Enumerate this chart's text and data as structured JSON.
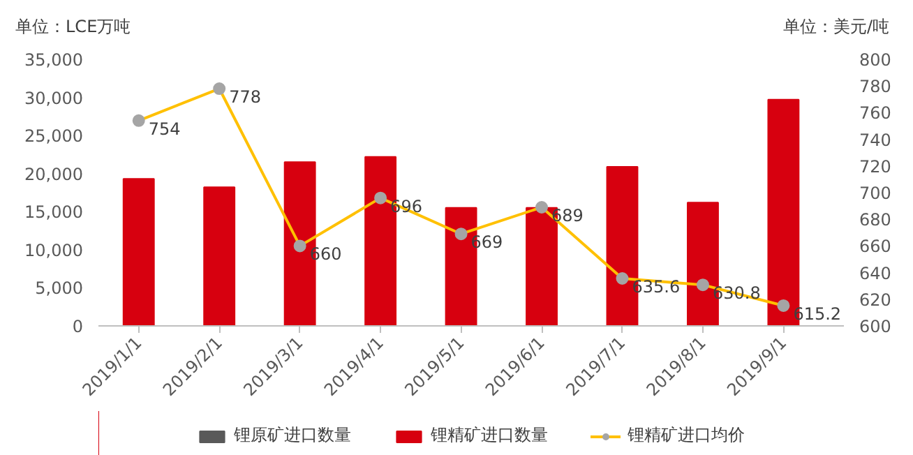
{
  "chart_data": {
    "type": "bar",
    "ylabel": "单位：LCE万吨",
    "y2label": "单位：美元/吨",
    "categories": [
      "2019/1/1",
      "2019/2/1",
      "2019/3/1",
      "2019/4/1",
      "2019/5/1",
      "2019/6/1",
      "2019/7/1",
      "2019/8/1",
      "2019/9/1"
    ],
    "series": [
      {
        "name": "锂原矿进口数量",
        "color": "#595959",
        "values": [
          null,
          null,
          null,
          null,
          null,
          null,
          null,
          null,
          null
        ]
      },
      {
        "name": "锂精矿进口数量",
        "color": "#d7000f",
        "values": [
          19300,
          18200,
          21500,
          22200,
          15500,
          15500,
          20900,
          16200,
          29700
        ]
      },
      {
        "name": "锂精矿进口均价",
        "type": "line",
        "axis": "y2",
        "color": "#ffc000",
        "marker": "circle",
        "values": [
          754,
          778,
          660,
          696,
          669,
          689,
          635.6,
          630.8,
          615.2
        ],
        "value_labels": [
          "754",
          "778",
          "660",
          "696",
          "669",
          "689",
          "635.6",
          "630.8",
          "615.2"
        ]
      }
    ],
    "ylim": [
      0,
      35000
    ],
    "yticks": [
      {
        "value": 0,
        "label": "0"
      },
      {
        "value": 5000,
        "label": "5,000"
      },
      {
        "value": 10000,
        "label": "10,000"
      },
      {
        "value": 15000,
        "label": "15,000"
      },
      {
        "value": 20000,
        "label": "20,000"
      },
      {
        "value": 25000,
        "label": "25,000"
      },
      {
        "value": 30000,
        "label": "30,000"
      },
      {
        "value": 35000,
        "label": "35,000"
      }
    ],
    "y2lim": [
      600,
      800
    ],
    "y2ticks": [
      600,
      620,
      640,
      660,
      680,
      700,
      720,
      740,
      760,
      780,
      800
    ],
    "grid": false,
    "legend": "bottom"
  }
}
